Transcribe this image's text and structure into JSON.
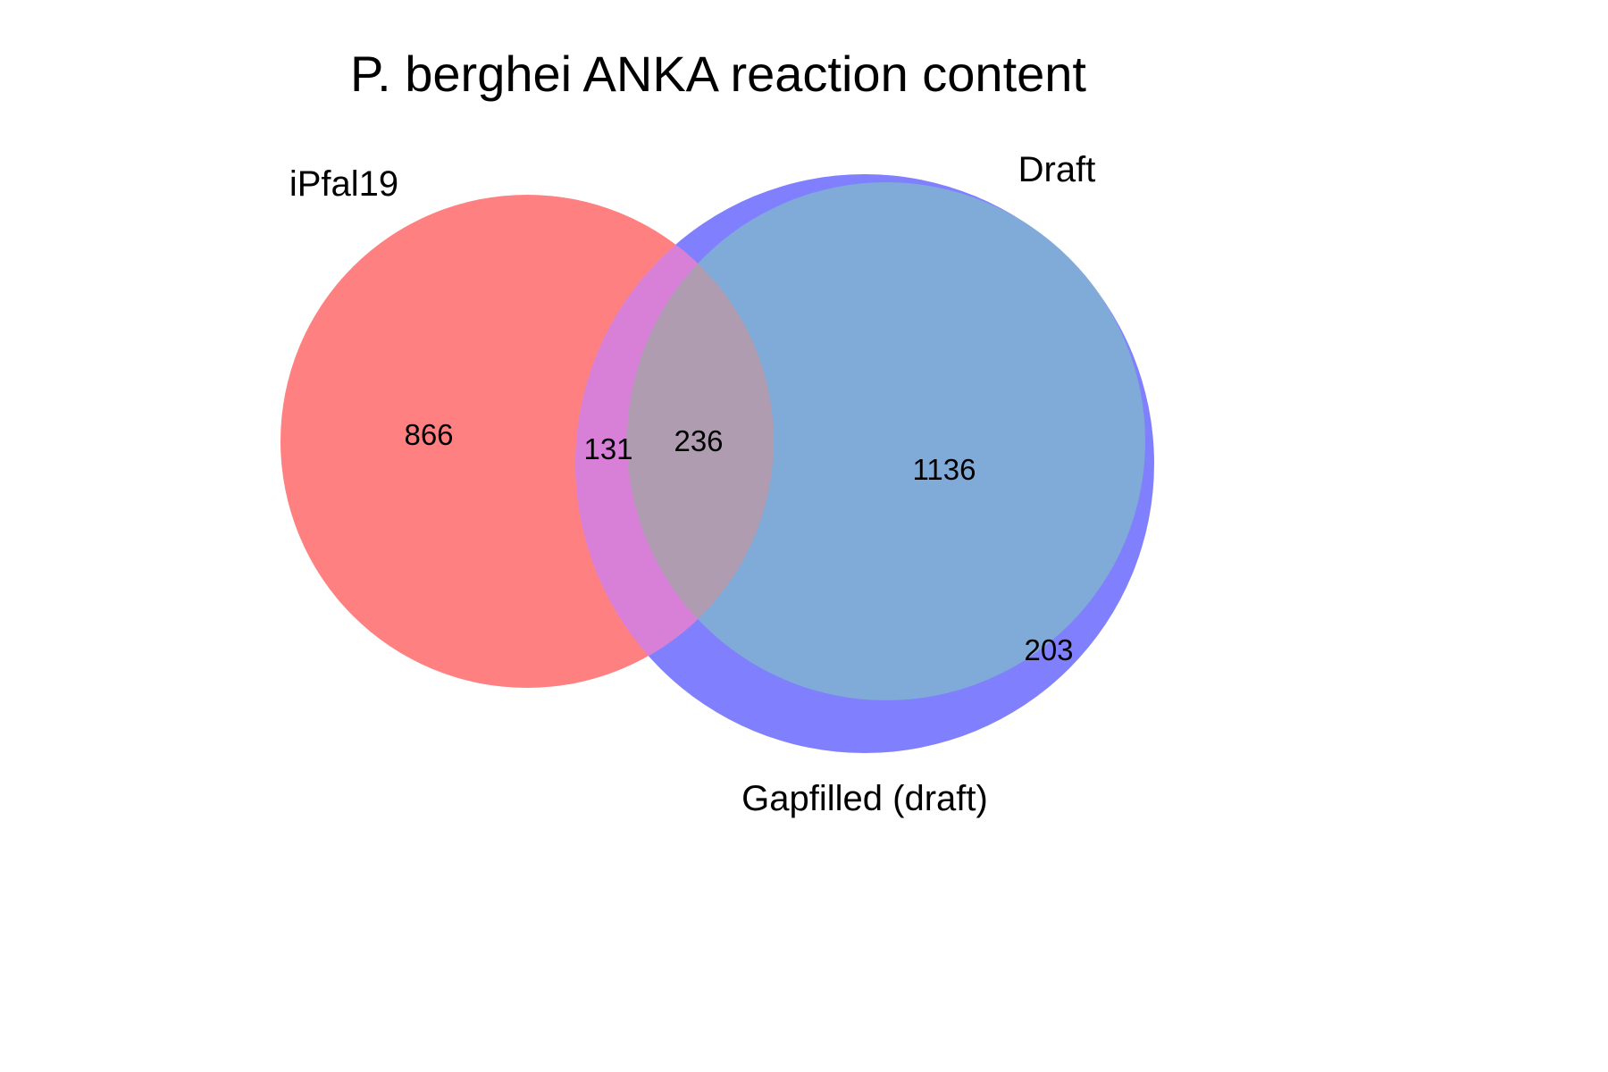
{
  "title": "P. berghei ANKA reaction content",
  "sets": {
    "ipfal19": {
      "label": "iPfal19",
      "color": "#ff8080"
    },
    "gapfilled": {
      "label": "Gapfilled (draft)",
      "color": "#8080ff"
    },
    "draft": {
      "label": "Draft",
      "color": "#80aad8"
    }
  },
  "overlap_colors": {
    "ipfal19_gapfilled": "#d880d8",
    "all_three": "#b09cb0"
  },
  "regions": {
    "ipfal19_only": "866",
    "ipfal19_gapfilled_only": "131",
    "all_three": "236",
    "draft_gapfilled": "1136",
    "gapfilled_only": "203"
  }
}
